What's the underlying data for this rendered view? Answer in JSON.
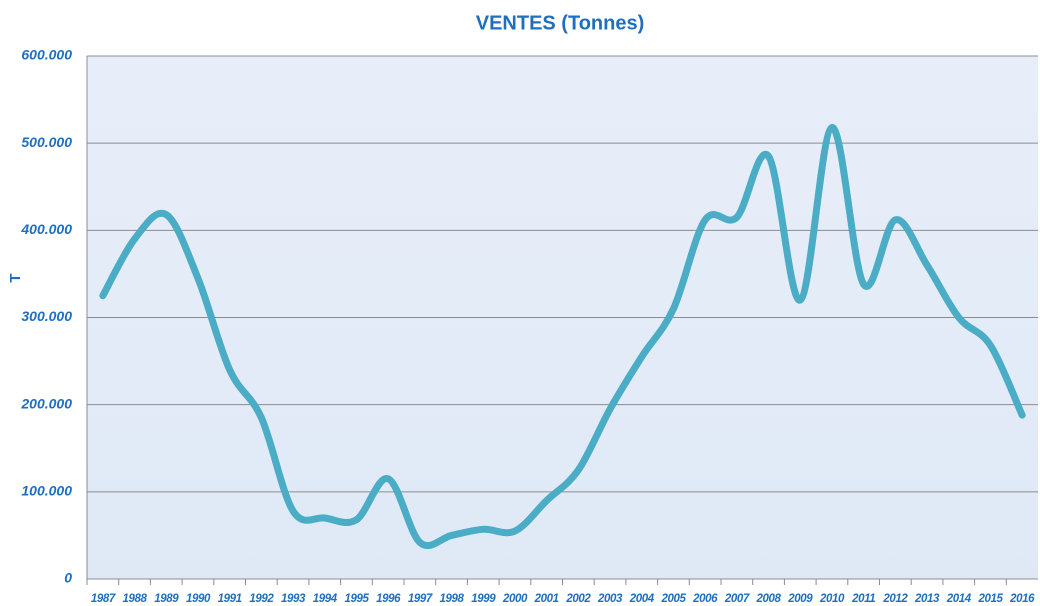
{
  "chart_data": {
    "type": "line",
    "title": "VENTES (Tonnes)",
    "y_label": "T",
    "categories": [
      "1987",
      "1988",
      "1989",
      "1990",
      "1991",
      "1992",
      "1993",
      "1994",
      "1995",
      "1996",
      "1997",
      "1998",
      "1999",
      "2000",
      "2001",
      "2002",
      "2003",
      "2004",
      "2005",
      "2006",
      "2007",
      "2008",
      "2009",
      "2010",
      "2011",
      "2012",
      "2013",
      "2014",
      "2015",
      "2016"
    ],
    "series": [
      {
        "name": "VENTES",
        "color": "#4bacc6",
        "values": [
          325000,
          390000,
          418000,
          345000,
          240000,
          185000,
          78000,
          70000,
          68000,
          115000,
          42000,
          50000,
          57000,
          55000,
          90000,
          125000,
          195000,
          255000,
          310000,
          412000,
          415000,
          485000,
          320000,
          518000,
          338000,
          412000,
          360000,
          300000,
          268000,
          188000
        ]
      }
    ],
    "ylim": [
      0,
      600000
    ],
    "yticks": [
      0,
      {
        "value": 100000,
        "label": "100.000"
      },
      {
        "value": 200000,
        "label": "200.000"
      },
      {
        "value": 300000,
        "label": "300.000"
      },
      {
        "value": 400000,
        "label": "400.000"
      },
      {
        "value": 500000,
        "label": "500.000"
      },
      {
        "value": 600000,
        "label": "600.000"
      }
    ],
    "grid": true,
    "smooth": true
  }
}
